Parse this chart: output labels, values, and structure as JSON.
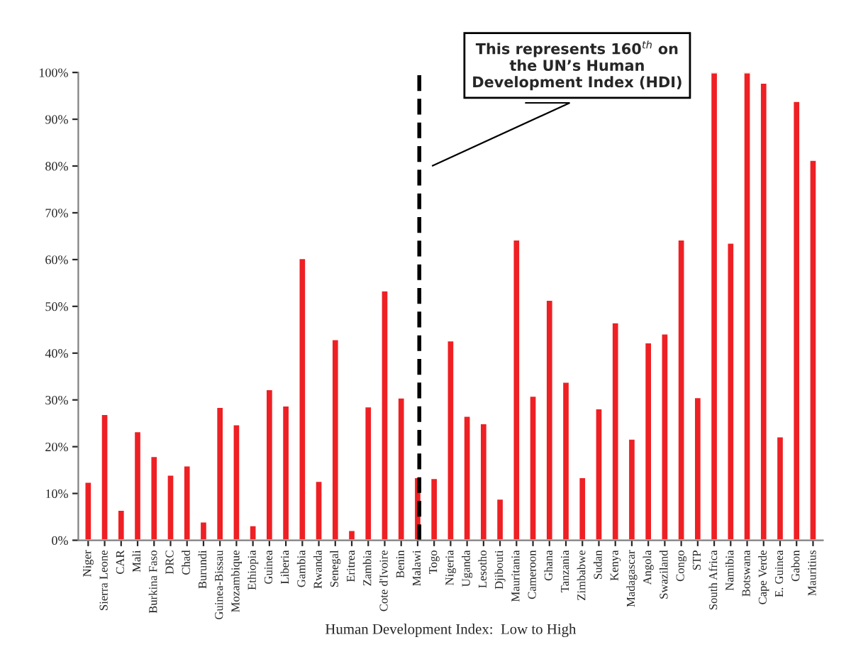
{
  "chart_data": {
    "type": "bar",
    "xlabel": "Human Development Index:  Low to High",
    "categories": [
      "Niger",
      "Sierra Leone",
      "CAR",
      "Mali",
      "Burkina Faso",
      "DRC",
      "Chad",
      "Burundi",
      "Guinea-Bissau",
      "Mozambique",
      "Ethiopia",
      "Guinea",
      "Liberia",
      "Gambia",
      "Rwanda",
      "Senegal",
      "Eritrea",
      "Zambia",
      "Cote d'Ivoire",
      "Benin",
      "Malawi",
      "Togo",
      "Nigeria",
      "Uganda",
      "Lesotho",
      "Djibouti",
      "Mauritania",
      "Cameroon",
      "Ghana",
      "Tanzania",
      "Zimbabwe",
      "Sudan",
      "Kenya",
      "Madagascar",
      "Angola",
      "Swaziland",
      "Congo",
      "STP",
      "South Africa",
      "Namibia",
      "Botswana",
      "Cape Verde",
      "E. Guinea",
      "Gabon",
      "Mauritius"
    ],
    "values": [
      12.5,
      27,
      6.5,
      23.3,
      18,
      14,
      16,
      4,
      28.5,
      24.8,
      3.2,
      32.3,
      28.8,
      60.3,
      12.7,
      43,
      2.2,
      28.6,
      53.4,
      30.5,
      13.5,
      13.3,
      42.7,
      26.6,
      25,
      8.9,
      64.3,
      30.9,
      51.4,
      33.9,
      13.5,
      28.2,
      46.6,
      21.7,
      42.3,
      44.2,
      64.3,
      30.6,
      100,
      63.6,
      100,
      97.8,
      22.2,
      93.9,
      81.3
    ],
    "color": "#ee2024",
    "ylim": [
      0,
      100
    ],
    "yticks": [
      {
        "value": 0,
        "label": "0%"
      },
      {
        "value": 10,
        "label": "10%"
      },
      {
        "value": 20,
        "label": "20%"
      },
      {
        "value": 30,
        "label": "30%"
      },
      {
        "value": 40,
        "label": "40%"
      },
      {
        "value": 50,
        "label": "50%"
      },
      {
        "value": 60,
        "label": "60%"
      },
      {
        "value": 70,
        "label": "70%"
      },
      {
        "value": 80,
        "label": "80%"
      },
      {
        "value": 90,
        "label": "90%"
      },
      {
        "value": 100,
        "label": "100%"
      }
    ],
    "ref_lines": [
      {
        "axis": "x",
        "value": "Malawi",
        "color": "#000000",
        "line_style": "dashed"
      }
    ],
    "annotations": [
      "This represents 160$^{th}$ on\nthe UN’s Human\nDevelopment Index (HDI)"
    ],
    "grid": false
  }
}
